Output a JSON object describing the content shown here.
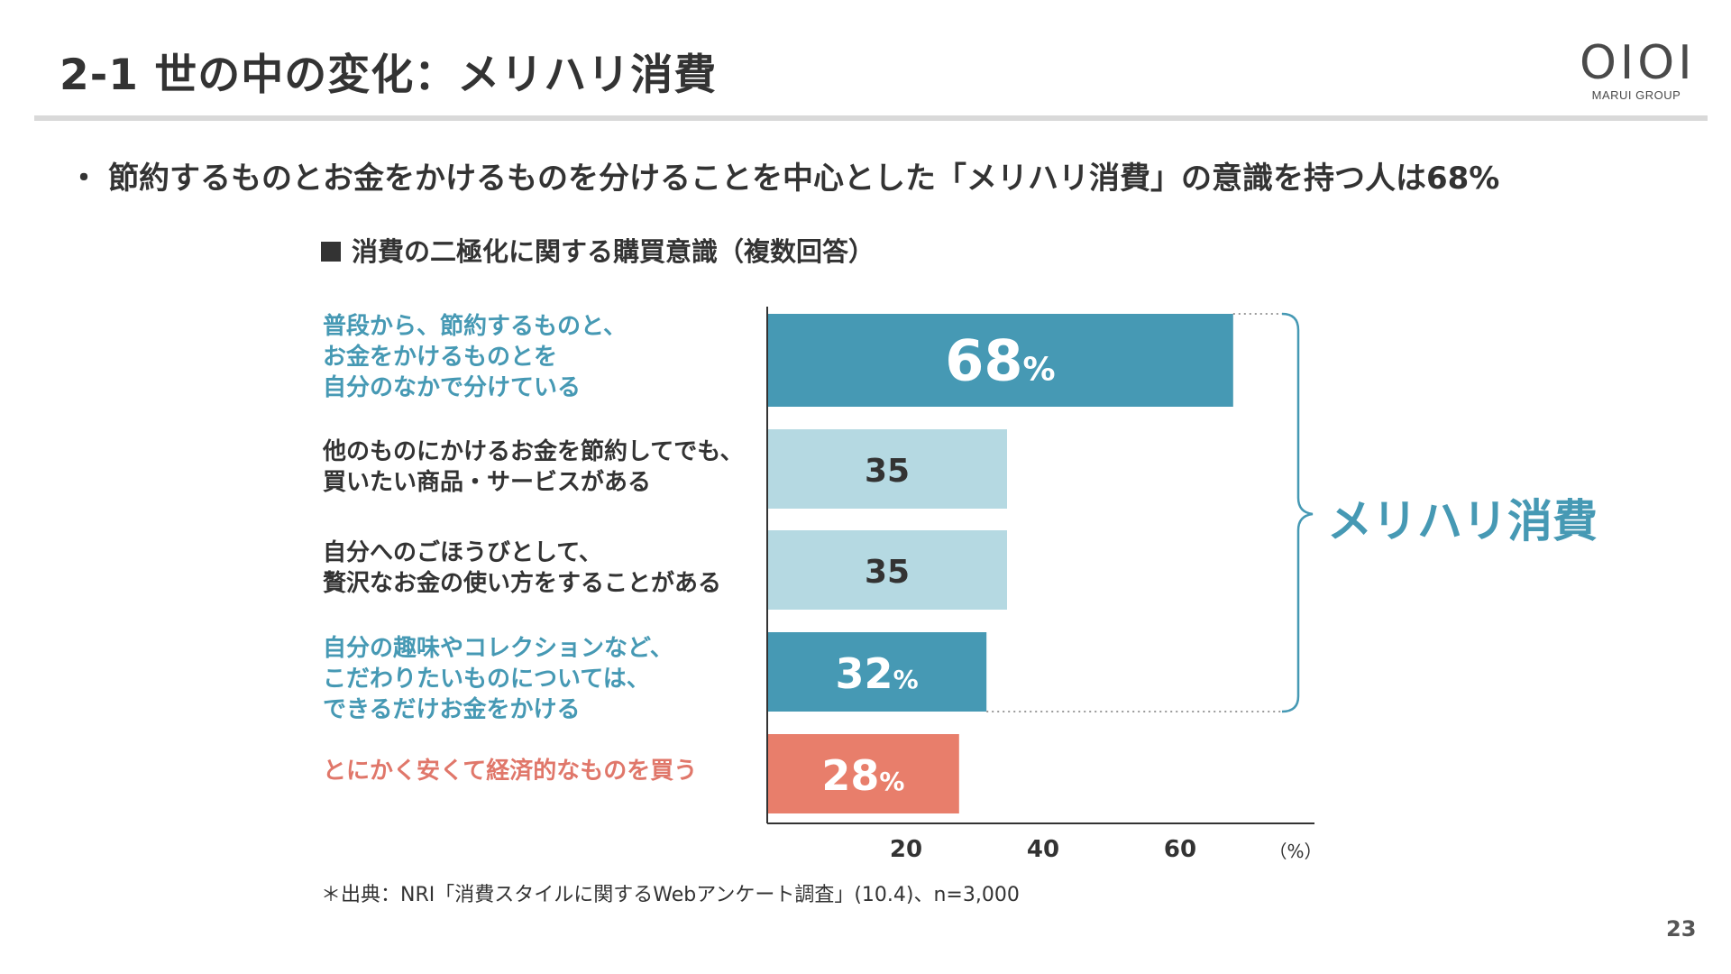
{
  "header": {
    "title": "2-1 世の中の変化：メリハリ消費",
    "logo_mark": "OIOI",
    "logo_sub": "MARUI GROUP"
  },
  "bullet": {
    "dot": "・",
    "text": "節約するものとお金をかけるものを分けることを中心とした「メリハリ消費」の意識を持つ人は68%"
  },
  "chart_data": {
    "type": "bar",
    "orientation": "horizontal",
    "title": "消費の二極化に関する購買意識（複数回答）",
    "categories": [
      "普段から、節約するものと、\nお金をかけるものとを\n自分のなかで分けている",
      "他のものにかけるお金を節約してでも、\n買いたい商品・サービスがある",
      "自分へのごほうびとして、\n贅沢なお金の使い方をすることがある",
      "自分の趣味やコレクションなど、\nこだわりたいものについては、\nできるだけお金をかける",
      "とにかく安くて経済的なものを買う"
    ],
    "values": [
      68,
      35,
      35,
      32,
      28
    ],
    "value_labels": [
      "68",
      "35",
      "35",
      "32",
      "28"
    ],
    "value_units": [
      "%",
      "",
      "",
      "%",
      "%"
    ],
    "bar_colors": [
      "#4699b4",
      "#b5d9e2",
      "#b5d9e2",
      "#4699b4",
      "#e87e6b"
    ],
    "label_colors": [
      "teal",
      "dark",
      "dark",
      "teal",
      "red"
    ],
    "x_ticks": [
      20,
      40,
      60
    ],
    "x_unit": "（%）",
    "xlim": [
      0,
      80
    ],
    "bracket_label": "メリハリ消費"
  },
  "footer": {
    "source": "＊出典：NRI「消費スタイルに関するWebアンケート調査」(10.4)、n=3,000",
    "page_number": "23"
  },
  "colors": {
    "teal": "#4699b4",
    "light_blue": "#b5d9e2",
    "coral": "#e87e6b",
    "axis": "#333333"
  }
}
